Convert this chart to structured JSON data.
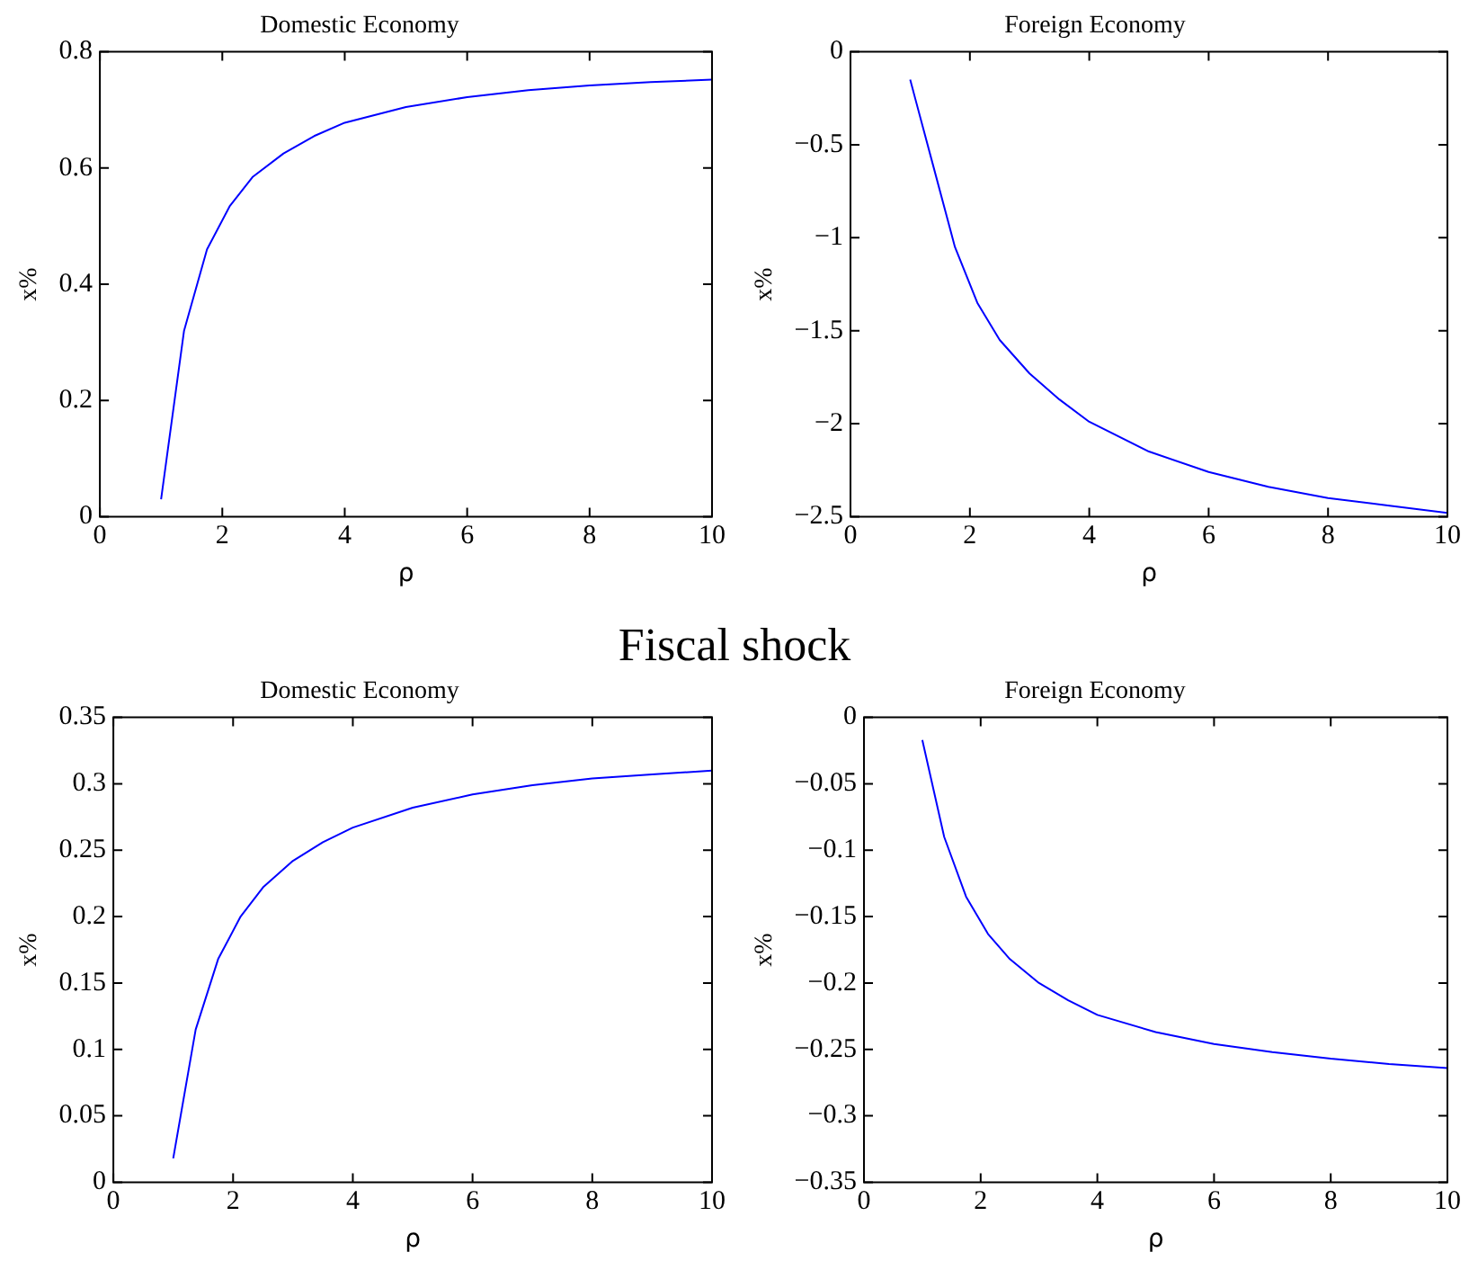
{
  "chart_data": [
    {
      "type": "line",
      "title": "Domestic Economy",
      "xlabel": "ρ",
      "ylabel": "x%",
      "x": [
        1,
        1.375,
        1.75,
        2.125,
        2.5,
        3,
        3.5,
        4,
        5,
        6,
        7,
        8,
        9,
        10
      ],
      "series": [
        {
          "color": "#0000ff",
          "values": [
            0.03,
            0.32,
            0.46,
            0.535,
            0.585,
            0.625,
            0.655,
            0.678,
            0.705,
            0.722,
            0.734,
            0.742,
            0.748,
            0.752
          ]
        }
      ],
      "xlim": [
        0,
        10
      ],
      "xticks": [
        0,
        2,
        4,
        6,
        8,
        10
      ],
      "ylim": [
        0,
        0.8
      ],
      "yticks": [
        0,
        0.2,
        0.4,
        0.6,
        0.8
      ],
      "grid": false,
      "legend": false,
      "marker": "none",
      "line_style": "solid"
    },
    {
      "type": "line",
      "title": "Foreign Economy",
      "xlabel": "ρ",
      "ylabel": "x%",
      "x": [
        1,
        1.375,
        1.75,
        2.125,
        2.5,
        3,
        3.5,
        4,
        5,
        6,
        7,
        8,
        9,
        10
      ],
      "series": [
        {
          "color": "#0000ff",
          "values": [
            -0.15,
            -0.6,
            -1.05,
            -1.35,
            -1.55,
            -1.73,
            -1.87,
            -1.99,
            -2.15,
            -2.26,
            -2.34,
            -2.4,
            -2.44,
            -2.48
          ]
        }
      ],
      "xlim": [
        0,
        10
      ],
      "xticks": [
        0,
        2,
        4,
        6,
        8,
        10
      ],
      "ylim": [
        -2.5,
        0
      ],
      "yticks": [
        {
          "value": -2.5,
          "label": "−2.5"
        },
        {
          "value": -2,
          "label": "−2"
        },
        {
          "value": -1.5,
          "label": "−1.5"
        },
        {
          "value": -1,
          "label": "−1"
        },
        {
          "value": -0.5,
          "label": "−0.5"
        },
        0
      ],
      "grid": false,
      "legend": false,
      "marker": "none",
      "line_style": "solid"
    },
    {
      "type": "line",
      "title": "Domestic Economy",
      "xlabel": "ρ",
      "ylabel": "x%",
      "annotations": [
        "Fiscal shock"
      ],
      "x": [
        1,
        1.375,
        1.75,
        2.125,
        2.5,
        3,
        3.5,
        4,
        5,
        6,
        7,
        8,
        9,
        10
      ],
      "series": [
        {
          "color": "#0000ff",
          "values": [
            0.018,
            0.115,
            0.168,
            0.2,
            0.222,
            0.242,
            0.256,
            0.267,
            0.282,
            0.292,
            0.299,
            0.304,
            0.307,
            0.31
          ]
        }
      ],
      "xlim": [
        0,
        10
      ],
      "xticks": [
        0,
        2,
        4,
        6,
        8,
        10
      ],
      "ylim": [
        0,
        0.35
      ],
      "yticks": [
        0,
        0.05,
        0.1,
        0.15,
        0.2,
        0.25,
        0.3,
        0.35
      ],
      "grid": false,
      "legend": false,
      "marker": "none",
      "line_style": "solid"
    },
    {
      "type": "line",
      "title": "Foreign Economy",
      "xlabel": "ρ",
      "ylabel": "x%",
      "x": [
        1,
        1.375,
        1.75,
        2.125,
        2.5,
        3,
        3.5,
        4,
        5,
        6,
        7,
        8,
        9,
        10
      ],
      "series": [
        {
          "color": "#0000ff",
          "values": [
            -0.017,
            -0.09,
            -0.135,
            -0.163,
            -0.182,
            -0.2,
            -0.213,
            -0.224,
            -0.237,
            -0.246,
            -0.252,
            -0.257,
            -0.261,
            -0.264
          ]
        }
      ],
      "xlim": [
        0,
        10
      ],
      "xticks": [
        0,
        2,
        4,
        6,
        8,
        10
      ],
      "ylim": [
        -0.35,
        0
      ],
      "yticks": [
        {
          "value": -0.35,
          "label": "−0.35"
        },
        {
          "value": -0.3,
          "label": "−0.3"
        },
        {
          "value": -0.25,
          "label": "−0.25"
        },
        {
          "value": -0.2,
          "label": "−0.2"
        },
        {
          "value": -0.15,
          "label": "−0.15"
        },
        {
          "value": -0.1,
          "label": "−0.1"
        },
        {
          "value": -0.05,
          "label": "−0.05"
        },
        0
      ],
      "grid": false,
      "legend": false,
      "marker": "none",
      "line_style": "solid"
    }
  ]
}
